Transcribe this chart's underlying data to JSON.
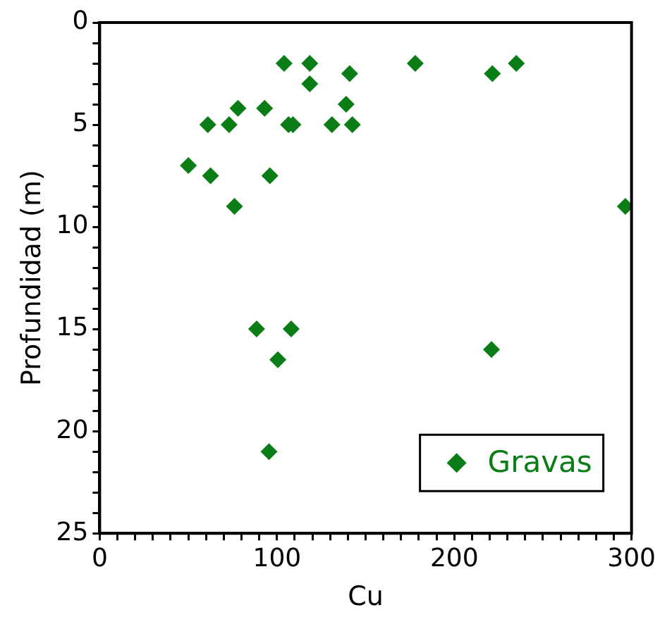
{
  "chart_data": {
    "type": "scatter",
    "xlabel": "Cu",
    "ylabel": "Profundidad (m)",
    "xlim": [
      0,
      300
    ],
    "xticks": [
      0,
      {
        "value": 10,
        "label": null
      },
      {
        "value": 20,
        "label": null
      },
      {
        "value": 30,
        "label": null
      },
      {
        "value": 40,
        "label": null
      },
      {
        "value": 50,
        "label": null
      },
      {
        "value": 60,
        "label": null
      },
      {
        "value": 70,
        "label": null
      },
      {
        "value": 80,
        "label": null
      },
      {
        "value": 90,
        "label": null
      },
      100,
      {
        "value": 110,
        "label": null
      },
      {
        "value": 120,
        "label": null
      },
      {
        "value": 130,
        "label": null
      },
      {
        "value": 140,
        "label": null
      },
      {
        "value": 150,
        "label": null
      },
      {
        "value": 160,
        "label": null
      },
      {
        "value": 170,
        "label": null
      },
      {
        "value": 180,
        "label": null
      },
      {
        "value": 190,
        "label": null
      },
      200,
      {
        "value": 210,
        "label": null
      },
      {
        "value": 220,
        "label": null
      },
      {
        "value": 230,
        "label": null
      },
      {
        "value": 240,
        "label": null
      },
      {
        "value": 250,
        "label": null
      },
      {
        "value": 260,
        "label": null
      },
      {
        "value": 270,
        "label": null
      },
      {
        "value": 280,
        "label": null
      },
      {
        "value": 290,
        "label": null
      },
      300
    ],
    "ylim": [
      25,
      0
    ],
    "yticks": [
      0,
      {
        "value": 1,
        "label": null
      },
      {
        "value": 2,
        "label": null
      },
      {
        "value": 3,
        "label": null
      },
      {
        "value": 4,
        "label": null
      },
      5,
      {
        "value": 6,
        "label": null
      },
      {
        "value": 7,
        "label": null
      },
      {
        "value": 8,
        "label": null
      },
      {
        "value": 9,
        "label": null
      },
      10,
      {
        "value": 11,
        "label": null
      },
      {
        "value": 12,
        "label": null
      },
      {
        "value": 13,
        "label": null
      },
      {
        "value": 14,
        "label": null
      },
      15,
      {
        "value": 16,
        "label": null
      },
      {
        "value": 17,
        "label": null
      },
      {
        "value": 18,
        "label": null
      },
      {
        "value": 19,
        "label": null
      },
      20,
      {
        "value": 21,
        "label": null
      },
      {
        "value": 22,
        "label": null
      },
      {
        "value": 23,
        "label": null
      },
      {
        "value": 24,
        "label": null
      },
      25
    ],
    "grid": false,
    "legend": "bottom right",
    "marker": "diamond",
    "series": [
      {
        "name": "Gravas",
        "color": "#0a7d16",
        "x": [
          50,
          61,
          62.5,
          73,
          78,
          76,
          93,
          96,
          104,
          106.5,
          109,
          118.5,
          118.5,
          131,
          139,
          141,
          142.5,
          178,
          221.5,
          235,
          296.5,
          88.5,
          108,
          100.5,
          95.5,
          221
        ],
        "values": [
          7,
          5,
          7.5,
          5,
          4.2,
          9,
          4.2,
          7.5,
          2,
          5,
          5,
          2,
          3,
          5,
          4,
          2.5,
          5,
          2,
          2.5,
          2,
          9,
          15,
          15,
          16.5,
          21,
          16
        ]
      }
    ]
  }
}
